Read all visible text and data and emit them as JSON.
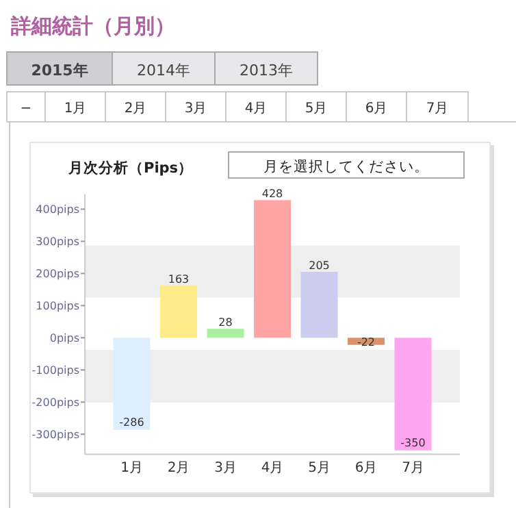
{
  "chart_data": {
    "type": "bar",
    "title": "月次分析（Pips）",
    "annotations": [
      "詳細統計（月別）",
      "2015年",
      "2014年",
      "2013年",
      "−",
      "1月",
      "2月",
      "3月",
      "4月",
      "5月",
      "6月",
      "7月",
      "月を選択してください。"
    ],
    "categories": [
      "1月",
      "2月",
      "3月",
      "4月",
      "5月",
      "6月",
      "7月"
    ],
    "values": [
      -286,
      163,
      28,
      428,
      205,
      -22,
      -350
    ],
    "colors": [
      "#ddeeff",
      "#ffeb88",
      "#aaf0a0",
      "#ffa4a4",
      "#ccccee",
      "#d9926a",
      "#ffa4ee"
    ],
    "data_labels": true,
    "ylim": [
      -362,
      447
    ],
    "yticks": [
      {
        "value": -300,
        "label": "-300pips"
      },
      {
        "value": -200,
        "label": "-200pips"
      },
      {
        "value": -100,
        "label": "-100pips"
      },
      {
        "value": 0,
        "label": "0pips"
      },
      {
        "value": 100,
        "label": "100pips"
      },
      {
        "value": 200,
        "label": "200pips"
      },
      {
        "value": 300,
        "label": "300pips"
      },
      {
        "value": 400,
        "label": "400pips"
      }
    ],
    "bands": [
      {
        "axis": "y",
        "from": 125,
        "to": 287,
        "color": "#eeeeee"
      },
      {
        "axis": "y",
        "from": -201,
        "to": -38,
        "color": "#eeeeee"
      }
    ],
    "grid": false
  }
}
